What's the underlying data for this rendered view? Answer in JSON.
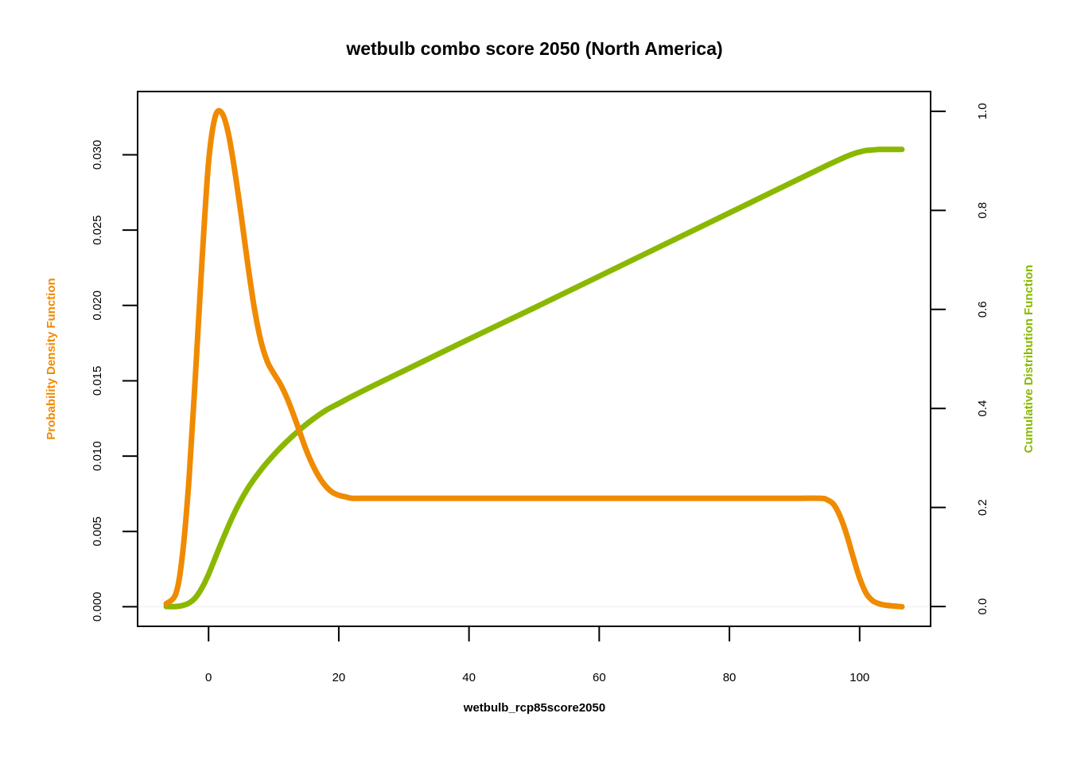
{
  "chart_data": {
    "type": "line",
    "title": "wetbulb combo score 2050 (North America)",
    "xlabel": "wetbulb_rcp85score2050",
    "ylabel_left": "Probability Density Function",
    "ylabel_right": "Cumulative Distribution Function",
    "xlim": [
      -10.9,
      110.9
    ],
    "ylim_left": [
      -0.0013,
      0.0342
    ],
    "ylim_right": [
      -0.04,
      1.04
    ],
    "xticks": [
      0,
      20,
      40,
      60,
      80,
      100
    ],
    "xtick_labels": [
      "0",
      "20",
      "40",
      "60",
      "80",
      "100"
    ],
    "yticks_left": [
      0,
      0.005,
      0.01,
      0.015,
      0.02,
      0.025,
      0.03
    ],
    "ytick_labels_left": [
      "0.000",
      "0.005",
      "0.010",
      "0.015",
      "0.020",
      "0.025",
      "0.030"
    ],
    "yticks_right": [
      0,
      0.2,
      0.4,
      0.6,
      0.8,
      1.0
    ],
    "ytick_labels_right": [
      "0.0",
      "0.2",
      "0.4",
      "0.6",
      "0.8",
      "1.0"
    ],
    "grid": false,
    "colors": {
      "pdf": "#f08a00",
      "cdf": "#8ab800",
      "axis": "#000000",
      "baseline": "#eeeeee"
    },
    "series": [
      {
        "name": "Probability Density Function",
        "axis": "left",
        "x": [
          -6.5,
          -5,
          -4,
          -3,
          -2,
          -1,
          0,
          1,
          2,
          3,
          4,
          5,
          6,
          7,
          8,
          9,
          10,
          11,
          12,
          13,
          14,
          15,
          16,
          17,
          18,
          19,
          20,
          21,
          22,
          24,
          26,
          30,
          40,
          50,
          60,
          70,
          80,
          90,
          94,
          95,
          96,
          97,
          98,
          99,
          100,
          101,
          102,
          103,
          104,
          106.5
        ],
        "y": [
          0.0002,
          0.0009,
          0.0035,
          0.0085,
          0.0155,
          0.023,
          0.0295,
          0.0325,
          0.0328,
          0.0315,
          0.029,
          0.026,
          0.0228,
          0.0199,
          0.0177,
          0.0163,
          0.0155,
          0.0148,
          0.0139,
          0.0128,
          0.0116,
          0.0104,
          0.0094,
          0.0086,
          0.008,
          0.0076,
          0.0074,
          0.0073,
          0.0072,
          0.0072,
          0.0072,
          0.0072,
          0.0072,
          0.0072,
          0.0072,
          0.0072,
          0.0072,
          0.0072,
          0.0072,
          0.0071,
          0.0068,
          0.006,
          0.0048,
          0.0033,
          0.0019,
          0.0009,
          0.0004,
          0.0002,
          0.0001,
          0.0
        ]
      },
      {
        "name": "Cumulative Distribution Function",
        "axis": "right",
        "x": [
          -6.5,
          -5,
          -4,
          -3,
          -2,
          -1,
          0,
          2,
          4,
          6,
          8,
          10,
          12,
          14,
          16,
          18,
          20,
          22,
          25,
          30,
          40,
          50,
          60,
          70,
          80,
          90,
          95,
          96,
          97,
          98,
          99,
          100,
          101,
          102,
          103,
          104,
          106.5
        ],
        "y": [
          0.0,
          0.0,
          0.002,
          0.007,
          0.018,
          0.038,
          0.065,
          0.13,
          0.19,
          0.238,
          0.275,
          0.306,
          0.333,
          0.357,
          0.378,
          0.396,
          0.41,
          0.424,
          0.444,
          0.476,
          0.54,
          0.603,
          0.667,
          0.731,
          0.795,
          0.859,
          0.891,
          0.897,
          0.903,
          0.909,
          0.914,
          0.918,
          0.921,
          0.922,
          0.923,
          0.923,
          0.923
        ]
      }
    ]
  }
}
